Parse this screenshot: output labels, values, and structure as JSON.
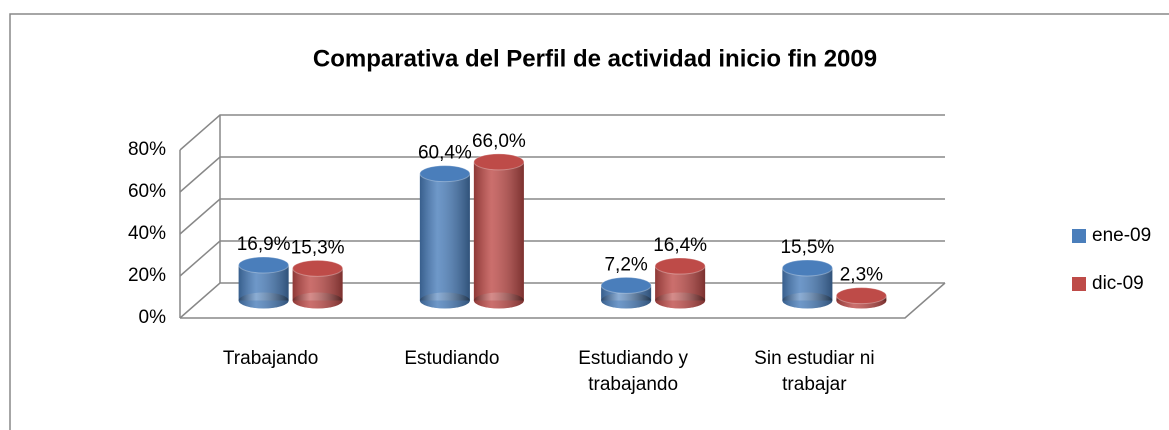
{
  "chart_data": {
    "type": "bar3d",
    "title": "Comparativa del Perfil de actividad  inicio fin 2009",
    "categories": [
      "Trabajando",
      "Estudiando",
      "Estudiando y trabajando",
      "Sin estudiar ni trabajar"
    ],
    "series": [
      {
        "name": "ene-09",
        "color": "#4a7ebb",
        "values": [
          16.9,
          60.4,
          7.2,
          15.5
        ],
        "value_labels": [
          "16,9%",
          "60,4%",
          "7,2%",
          "15,5%"
        ]
      },
      {
        "name": "dic-09",
        "color": "#be4b48",
        "values": [
          15.3,
          66.0,
          16.4,
          2.3
        ],
        "value_labels": [
          "15,3%",
          "66,0%",
          "16,4%",
          "2,3%"
        ]
      }
    ],
    "ylim": [
      0,
      80
    ],
    "yticks": [
      {
        "value": 0,
        "label": "0%"
      },
      {
        "value": 20,
        "label": "20%"
      },
      {
        "value": 40,
        "label": "40%"
      },
      {
        "value": 60,
        "label": "60%"
      },
      {
        "value": 80,
        "label": "80%"
      }
    ],
    "grid": true,
    "legend": "right"
  }
}
